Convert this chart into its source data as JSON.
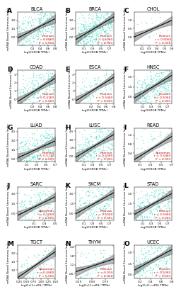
{
  "panels": [
    {
      "label": "A",
      "title": "BLCA",
      "corr_type": "Pearson",
      "r": "= 0.6060",
      "p": "< 0.001",
      "xlab": "log2(HROB TPMs)",
      "ylab": "mRNA Based Stemness Index",
      "x_range": [
        -0.2,
        0.8
      ],
      "y_range": [
        -1.5,
        4.5
      ],
      "slope": 3.5,
      "intercept": 0.5,
      "n_points": 350,
      "seed": 1,
      "xticks": [
        0.2,
        0.4,
        0.6,
        0.8
      ]
    },
    {
      "label": "B",
      "title": "BRCA",
      "corr_type": "Pearson",
      "r": "= 0.6060",
      "p": "< 0.001",
      "xlab": "log2(HROB TPMs)",
      "ylab": "mRNA Based Stemness Index",
      "x_range": [
        -0.1,
        0.8
      ],
      "y_range": [
        -1.5,
        4.5
      ],
      "slope": 4.5,
      "intercept": 0.0,
      "n_points": 500,
      "seed": 2,
      "xticks": [
        0.1,
        0.3,
        0.5,
        0.7
      ]
    },
    {
      "label": "C",
      "title": "CHOL",
      "corr_type": "Pearson",
      "r": "= 0.6060",
      "p": "< 0.050",
      "xlab": "log2(HROB TPMs)",
      "ylab": "mRNA Based Stemness Index",
      "x_range": [
        0.1,
        0.6
      ],
      "y_range": [
        -0.5,
        1.5
      ],
      "slope": 2.0,
      "intercept": -0.2,
      "n_points": 36,
      "seed": 3,
      "xticks": [
        0.2,
        0.3,
        0.4,
        0.5,
        0.6
      ]
    },
    {
      "label": "D",
      "title": "COAD",
      "corr_type": "Pearson",
      "r": "= 0.4760",
      "p": "< 0.001",
      "xlab": "log2(HROB TPMs)",
      "ylab": "mRNA Based Stemness Index",
      "x_range": [
        -0.2,
        0.8
      ],
      "y_range": [
        -0.5,
        3.5
      ],
      "slope": 2.8,
      "intercept": 0.3,
      "n_points": 280,
      "seed": 4,
      "xticks": [
        0.2,
        0.4,
        0.6,
        0.8
      ]
    },
    {
      "label": "E",
      "title": "ESCA",
      "corr_type": "Pearson",
      "r": "= 0.5060",
      "p": "< 0.001",
      "xlab": "log2(HROB TPMs)",
      "ylab": "mRNA Based Stemness Index",
      "x_range": [
        -0.2,
        0.8
      ],
      "y_range": [
        -0.5,
        3.5
      ],
      "slope": 2.8,
      "intercept": 0.4,
      "n_points": 160,
      "seed": 5,
      "xticks": [
        0.2,
        0.4,
        0.6,
        0.8
      ]
    },
    {
      "label": "F",
      "title": "HNSC",
      "corr_type": "Pearson",
      "r": "= 0.5060",
      "p": "< 0.001",
      "xlab": "log2(HROB TPMs)",
      "ylab": "mRNA Based Stemness Index",
      "x_range": [
        -0.1,
        0.8
      ],
      "y_range": [
        -1.0,
        4.0
      ],
      "slope": 3.8,
      "intercept": 0.2,
      "n_points": 400,
      "seed": 6,
      "xticks": [
        0.1,
        0.3,
        0.5,
        0.7
      ]
    },
    {
      "label": "G",
      "title": "LUAD",
      "corr_type": "Pearson",
      "r": "= 0.5110",
      "p": "< 0.001",
      "xlab": "log2(HROB TPMs)",
      "ylab": "mRNA Based Stemness Index",
      "x_range": [
        -0.1,
        0.7
      ],
      "y_range": [
        -0.5,
        5.0
      ],
      "slope": 3.5,
      "intercept": 0.5,
      "n_points": 350,
      "seed": 7,
      "xticks": [
        0.1,
        0.3,
        0.5,
        0.7
      ]
    },
    {
      "label": "H",
      "title": "LUSC",
      "corr_type": "Pearson",
      "r": "= 0.5060",
      "p": "< 0.001",
      "xlab": "log2(HROB TPMs)",
      "ylab": "mRNA Based Stemness Index",
      "x_range": [
        -0.1,
        0.8
      ],
      "y_range": [
        -1.0,
        5.0
      ],
      "slope": 4.5,
      "intercept": 0.3,
      "n_points": 340,
      "seed": 8,
      "xticks": [
        0.1,
        0.3,
        0.5,
        0.7
      ]
    },
    {
      "label": "I",
      "title": "READ",
      "corr_type": "Spearman",
      "r": "= 0.5060",
      "p": "< 0.001",
      "xlab": "log2(HROB TPMs)",
      "ylab": "mRNA Based Stemness Index",
      "x_range": [
        0.0,
        0.7
      ],
      "y_range": [
        0.0,
        1.5
      ],
      "slope": 1.5,
      "intercept": 0.1,
      "n_points": 80,
      "seed": 9,
      "xticks": [
        0.1,
        0.3,
        0.5,
        0.7
      ]
    },
    {
      "label": "J",
      "title": "SARC",
      "corr_type": "Spearman",
      "r": "= 0.5060",
      "p": "< 0.001",
      "xlab": "log2(HROB TPMs)",
      "ylab": "mRNA Based Stemness Index",
      "x_range": [
        -0.2,
        0.5
      ],
      "y_range": [
        -1.0,
        4.0
      ],
      "slope": 4.0,
      "intercept": 0.5,
      "n_points": 210,
      "seed": 10,
      "xticks": [
        0.1,
        0.3,
        0.5
      ]
    },
    {
      "label": "K",
      "title": "SKCM",
      "corr_type": "Pearson",
      "r": "= 0.5060",
      "p": "< 0.001",
      "xlab": "log2(HROB TPMs)",
      "ylab": "mRNA Based Stemness Index",
      "x_range": [
        -0.1,
        0.8
      ],
      "y_range": [
        -1.0,
        4.0
      ],
      "slope": 3.5,
      "intercept": 0.3,
      "n_points": 260,
      "seed": 11,
      "xticks": [
        0.1,
        0.3,
        0.5,
        0.7
      ]
    },
    {
      "label": "L",
      "title": "STAD",
      "corr_type": "Pearson",
      "r": "= 0.5060",
      "p": "< 0.001",
      "xlab": "log2(HROB TPMs)",
      "ylab": "mRNA Based Stemness Index",
      "x_range": [
        -0.1,
        0.8
      ],
      "y_range": [
        -1.0,
        4.0
      ],
      "slope": 3.5,
      "intercept": 0.2,
      "n_points": 320,
      "seed": 12,
      "xticks": [
        0.1,
        0.3,
        0.5,
        0.7
      ]
    },
    {
      "label": "M",
      "title": "TGCT",
      "corr_type": "Spearman",
      "r": "= 0.5060",
      "p": "< 0.001",
      "xlab": "log2(c(1+eRS) TPMs)",
      "ylab": "mRNA Based Stemness Index",
      "x_range": [
        0.2,
        1.5
      ],
      "y_range": [
        0.5,
        2.5
      ],
      "slope": 1.2,
      "intercept": 0.3,
      "n_points": 130,
      "seed": 13,
      "xticks": [
        0.25,
        0.5,
        0.75,
        1.0,
        1.25,
        1.5
      ]
    },
    {
      "label": "N",
      "title": "THYM",
      "corr_type": "Pearson",
      "r": "= 0.050",
      "p": "< 0.050",
      "xlab": "log2(c(1+eRS) TPMs)",
      "ylab": "mRNA Based Stemness Index",
      "x_range": [
        0.2,
        0.9
      ],
      "y_range": [
        0.3,
        2.5
      ],
      "slope": 1.2,
      "intercept": 0.5,
      "n_points": 120,
      "seed": 14,
      "xticks": [
        0.25,
        0.5,
        0.75
      ]
    },
    {
      "label": "O",
      "title": "UCEC",
      "corr_type": "Pearson",
      "r": "= 0.5060",
      "p": "< 0.001",
      "xlab": "log2(c(1+eRS) TPMs)",
      "ylab": "mRNA Based Stemness Index",
      "x_range": [
        0.1,
        0.8
      ],
      "y_range": [
        -0.5,
        4.0
      ],
      "slope": 4.0,
      "intercept": 0.2,
      "n_points": 310,
      "seed": 15,
      "xticks": [
        0.2,
        0.4,
        0.6,
        0.8
      ]
    }
  ],
  "scatter_color": "#3ED6C8",
  "scatter_alpha": 0.55,
  "scatter_size": 1.2,
  "line_color": "#111111",
  "band_color": "#666666",
  "band_alpha": 0.45,
  "stat_color": "#CC0000",
  "stat_fontsize": 3.2,
  "title_fontsize": 4.8,
  "xlabel_fontsize": 3.0,
  "ylabel_fontsize": 3.0,
  "tick_fontsize": 3.0,
  "panel_label_fontsize": 6.5,
  "bg_color": "#ffffff"
}
